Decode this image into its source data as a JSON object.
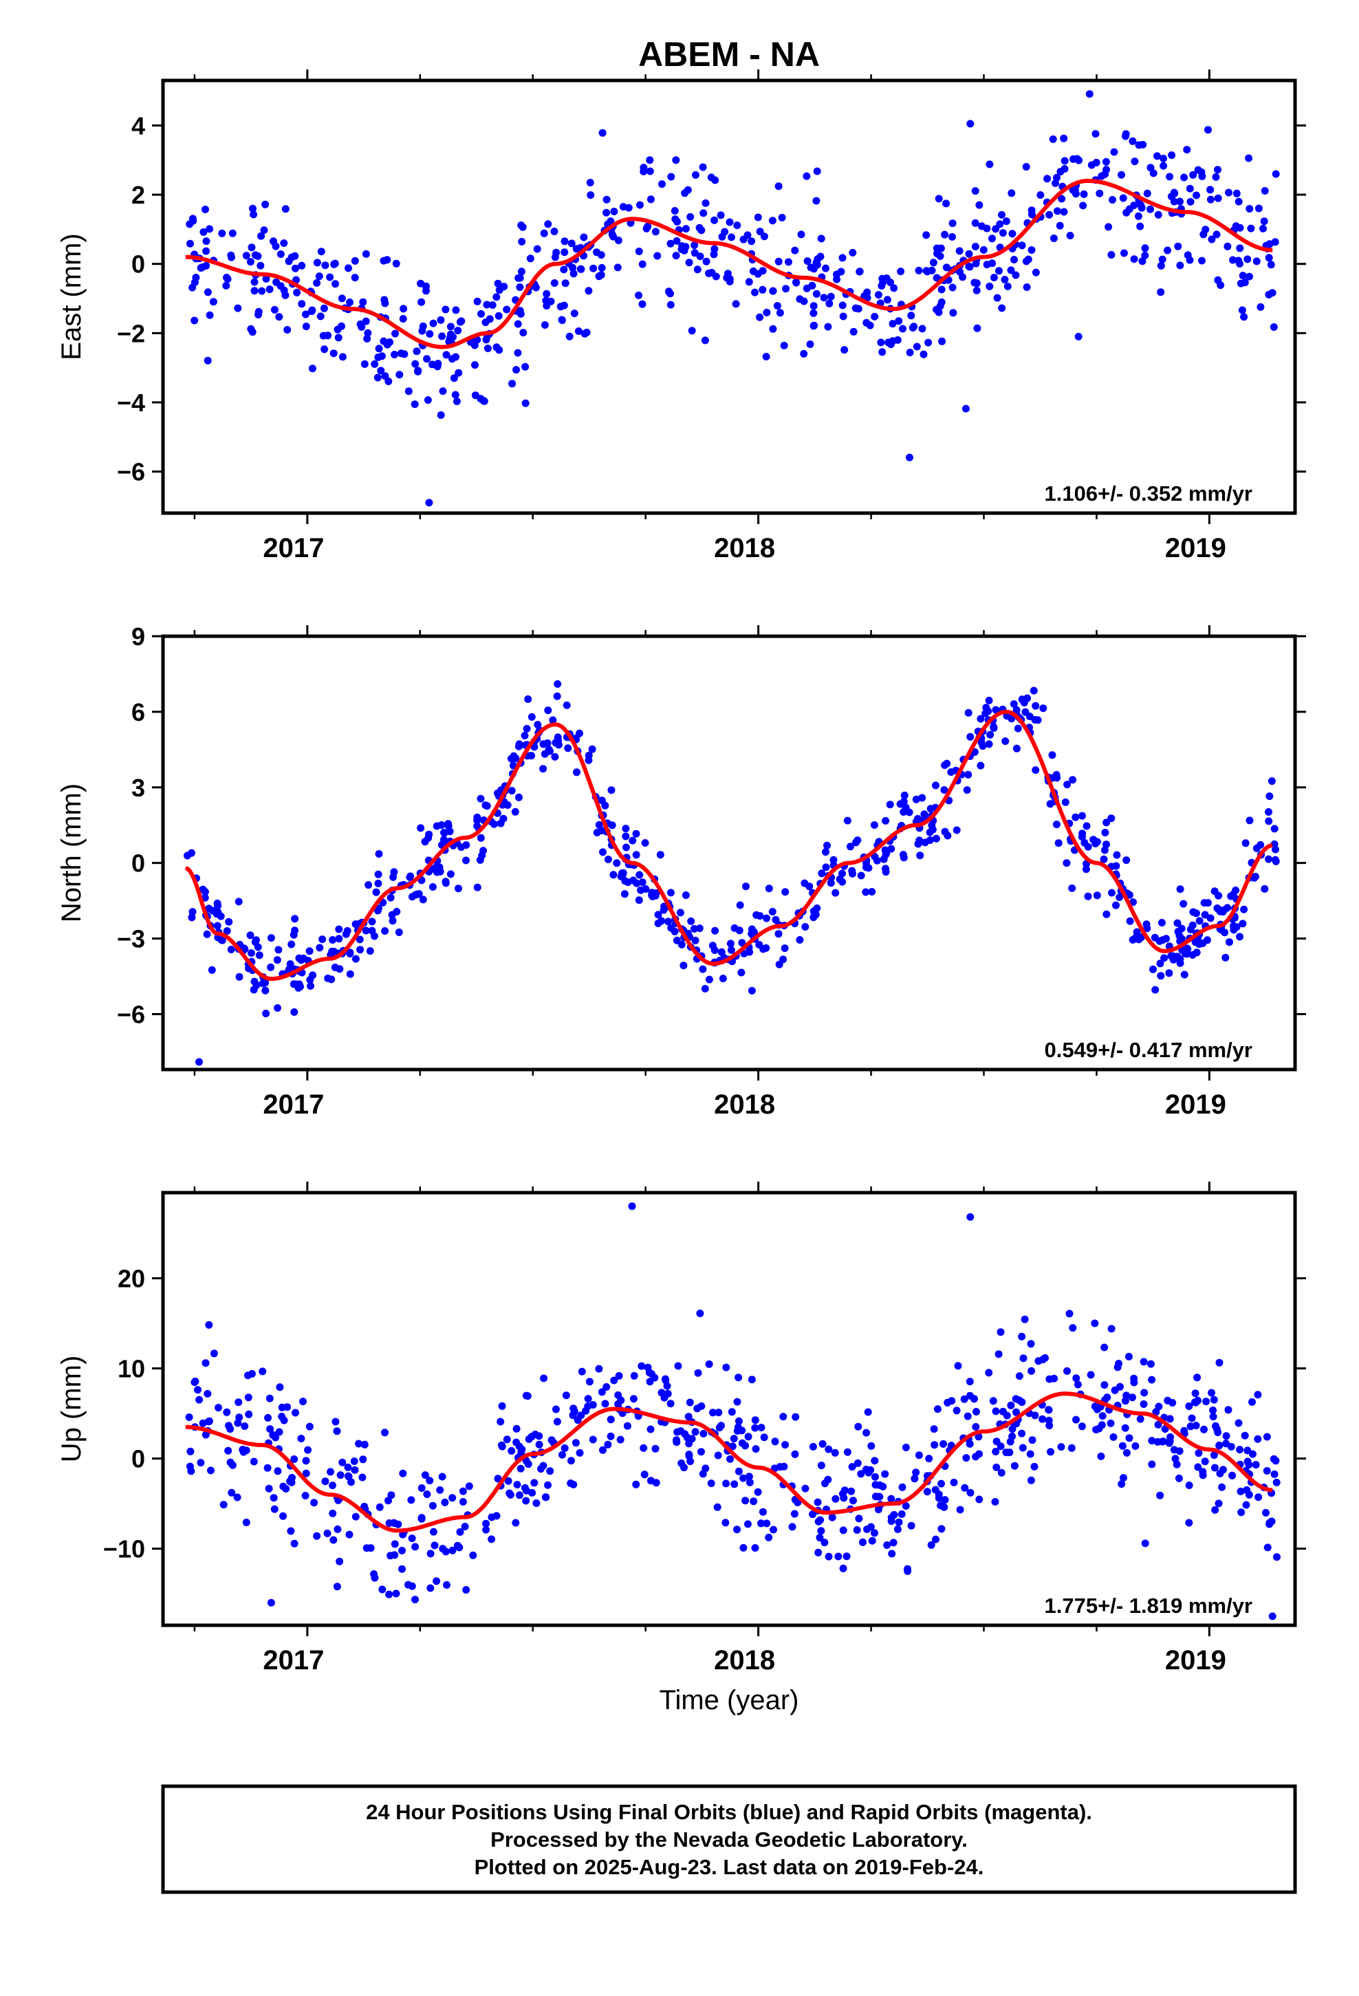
{
  "figure": {
    "title": "ABEM - NA",
    "xlabel": "Time (year)",
    "caption": [
      "24 Hour Positions Using Final Orbits (blue) and Rapid Orbits (magenta).",
      "Processed by the Nevada Geodetic Laboratory.",
      "Plotted on 2025-Aug-23. Last data on 2019-Feb-24."
    ],
    "colors": {
      "points": "#0000ff",
      "fit": "#ff0000",
      "frame": "#000000"
    }
  },
  "chart_data": [
    {
      "type": "scatter",
      "ylabel": "East (mm)",
      "rate_text": "1.106+/- 0.352 mm/yr",
      "xlim": [
        2016.68,
        2019.19
      ],
      "ylim": [
        -7.2,
        5.3
      ],
      "xticks": [
        2017,
        2018,
        2019
      ],
      "xtick_labels": [
        "2017",
        "2018",
        "2019"
      ],
      "yticks": [
        -6,
        -4,
        -2,
        0,
        2,
        4
      ],
      "ytick_labels": [
        "−6",
        "−4",
        "−2",
        "0",
        "2",
        "4"
      ],
      "fit": {
        "name": "model",
        "x": [
          2016.73,
          2016.9,
          2017.1,
          2017.3,
          2017.4,
          2017.55,
          2017.72,
          2017.9,
          2018.1,
          2018.3,
          2018.5,
          2018.73,
          2018.95,
          2019.14
        ],
        "y": [
          0.2,
          -0.3,
          -1.3,
          -2.4,
          -2.0,
          0.0,
          1.3,
          0.6,
          -0.4,
          -1.3,
          0.2,
          2.4,
          1.5,
          0.4
        ]
      },
      "scatter_noise": 1.05,
      "outliers": [
        [
          2017.27,
          -6.9
        ],
        [
          2018.71,
          -2.1
        ],
        [
          2018.47,
          4.05
        ]
      ]
    },
    {
      "type": "scatter",
      "ylabel": "North (mm)",
      "rate_text": "0.549+/- 0.417 mm/yr",
      "xlim": [
        2016.68,
        2019.19
      ],
      "ylim": [
        -8.2,
        9.0
      ],
      "xticks": [
        2017,
        2018,
        2019
      ],
      "xtick_labels": [
        "2017",
        "2018",
        "2019"
      ],
      "yticks": [
        -6,
        -3,
        0,
        3,
        6,
        9
      ],
      "ytick_labels": [
        "−6",
        "−3",
        "0",
        "3",
        "6",
        "9"
      ],
      "fit": {
        "name": "model",
        "x": [
          2016.73,
          2016.8,
          2016.92,
          2017.05,
          2017.2,
          2017.35,
          2017.55,
          2017.72,
          2017.9,
          2018.05,
          2018.2,
          2018.35,
          2018.55,
          2018.75,
          2018.9,
          2019.02,
          2019.14
        ],
        "y": [
          -0.2,
          -2.8,
          -4.6,
          -3.8,
          -1.0,
          1.0,
          5.5,
          0.0,
          -4.0,
          -2.5,
          0.0,
          1.5,
          6.0,
          0.0,
          -3.5,
          -2.5,
          0.7
        ]
      },
      "scatter_noise": 0.85,
      "outliers": [
        [
          2016.76,
          -7.9
        ],
        [
          2018.44,
          1.3
        ]
      ]
    },
    {
      "type": "scatter",
      "ylabel": "Up (mm)",
      "rate_text": "1.775+/- 1.819 mm/yr",
      "xlim": [
        2016.68,
        2019.19
      ],
      "ylim": [
        -18.5,
        29.5
      ],
      "xticks": [
        2017,
        2018,
        2019
      ],
      "xtick_labels": [
        "2017",
        "2018",
        "2019"
      ],
      "yticks": [
        -10,
        0,
        10,
        20
      ],
      "ytick_labels": [
        "−10",
        "0",
        "10",
        "20"
      ],
      "fit": {
        "name": "model",
        "x": [
          2016.73,
          2016.9,
          2017.05,
          2017.2,
          2017.35,
          2017.5,
          2017.68,
          2017.85,
          2018.0,
          2018.15,
          2018.3,
          2018.5,
          2018.68,
          2018.85,
          2019.0,
          2019.14
        ],
        "y": [
          3.5,
          1.5,
          -4.0,
          -8.0,
          -6.5,
          0.5,
          5.5,
          4.0,
          -1.0,
          -6.0,
          -5.0,
          3.0,
          7.2,
          5.0,
          1.0,
          -3.5
        ]
      },
      "scatter_noise": 4.2,
      "outliers": [
        [
          2017.72,
          28.0
        ],
        [
          2018.47,
          26.8
        ],
        [
          2019.14,
          -17.5
        ],
        [
          2016.92,
          -16.0
        ]
      ]
    }
  ]
}
